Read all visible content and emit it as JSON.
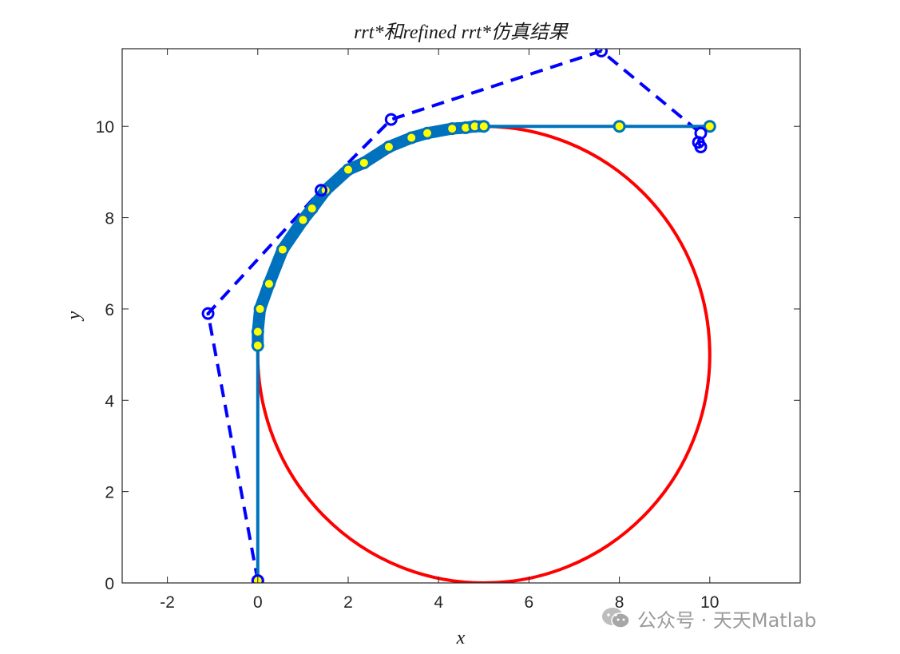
{
  "chart_data": {
    "type": "line",
    "title": "rrt*和refined rrt*仿真结果",
    "xlabel": "x",
    "ylabel": "y",
    "xlim": [
      -3,
      12
    ],
    "ylim": [
      0,
      11.7
    ],
    "xticks": [
      -2,
      0,
      2,
      4,
      6,
      8,
      10
    ],
    "yticks": [
      0,
      2,
      4,
      6,
      8,
      10
    ],
    "xtick_labels": [
      "-2",
      "0",
      "2",
      "4",
      "6",
      "8",
      "10"
    ],
    "ytick_labels": [
      "0",
      "2",
      "4",
      "6",
      "8",
      "10"
    ],
    "grid": false,
    "box": true,
    "legend": "none",
    "circle": {
      "center": [
        5,
        5
      ],
      "radius": 5,
      "color": "#ff0000"
    },
    "series": [
      {
        "style": "dashed-line-open-circles",
        "color": "#0000ff",
        "x": [
          0,
          -1.1,
          1.4,
          2.95,
          7.6,
          9.8,
          9.75,
          9.8
        ],
        "y": [
          0.05,
          5.9,
          8.6,
          10.15,
          11.65,
          9.85,
          9.65,
          9.55
        ]
      },
      {
        "style": "solid-line-filled-markers",
        "color": "#0072bd",
        "marker_fill": "#ffff00",
        "x": [
          0,
          0,
          0,
          0.05,
          0.25,
          0.55,
          1.0,
          1.2,
          1.5,
          2.0,
          2.35,
          2.9,
          3.4,
          3.75,
          4.3,
          4.6,
          4.8,
          5.0,
          8.0,
          10.0
        ],
        "y": [
          0.05,
          5.2,
          5.5,
          6.0,
          6.55,
          7.3,
          7.95,
          8.2,
          8.6,
          9.05,
          9.2,
          9.55,
          9.75,
          9.85,
          9.95,
          9.97,
          10.0,
          10.0,
          10.0,
          10.0
        ]
      }
    ]
  },
  "watermark": {
    "icon": "wechat-icon",
    "text": "公众号 · 天天Matlab"
  }
}
